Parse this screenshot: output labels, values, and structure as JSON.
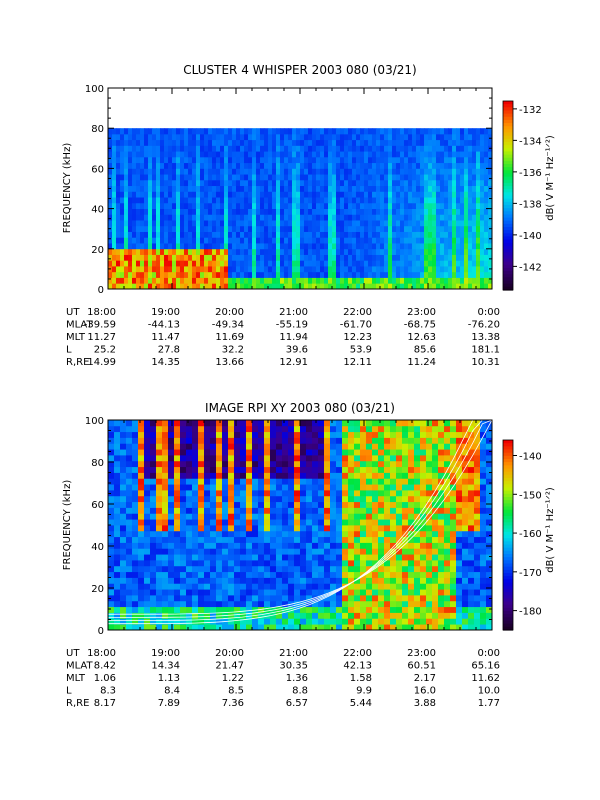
{
  "chart_data": [
    {
      "type": "heatmap",
      "title": "CLUSTER 4 WHISPER 2003 080 (03/21)",
      "ylabel": "FREQUENCY (kHz)",
      "ylim": [
        0,
        100
      ],
      "yticks": [
        "0",
        "20",
        "40",
        "60",
        "80",
        "100"
      ],
      "data_frequency_max_khz": 80,
      "colorbar": {
        "label": "dB( V M⁻¹ Hz⁻¹ᐟ²)",
        "range": [
          -143.5,
          -131.5
        ],
        "ticks": [
          "-132",
          "-134",
          "-136",
          "-138",
          "-140",
          "-142"
        ]
      },
      "x_axis": {
        "row_labels": [
          "UT",
          "MLAT",
          "MLT",
          "L",
          "R,RE"
        ],
        "ut": [
          "18:00",
          "19:00",
          "20:00",
          "21:00",
          "22:00",
          "23:00",
          "0:00"
        ],
        "mlat": [
          "-39.59",
          "-44.13",
          "-49.34",
          "-55.19",
          "-61.70",
          "-68.75",
          "-76.20"
        ],
        "mlt": [
          "11.27",
          "11.47",
          "11.69",
          "11.94",
          "12.23",
          "12.63",
          "13.38"
        ],
        "l": [
          "25.2",
          "27.8",
          "32.2",
          "39.6",
          "53.9",
          "85.6",
          "181.1"
        ],
        "r_re": [
          "14.99",
          "14.35",
          "13.66",
          "12.91",
          "12.11",
          "11.24",
          "10.31"
        ]
      }
    },
    {
      "type": "heatmap",
      "title": "IMAGE RPI XY 2003 080 (03/21)",
      "ylabel": "FREQUENCY (kHz)",
      "ylim": [
        0,
        100
      ],
      "yticks": [
        "0",
        "20",
        "40",
        "60",
        "80",
        "100"
      ],
      "colorbar": {
        "label": "dB( V M⁻¹ Hz⁻¹ᐟ²)",
        "range": [
          -185,
          -136
        ],
        "ticks": [
          "-140",
          "-150",
          "-160",
          "-170",
          "-180"
        ]
      },
      "x_axis": {
        "row_labels": [
          "UT",
          "MLAT",
          "MLT",
          "L",
          "R,RE"
        ],
        "ut": [
          "18:00",
          "19:00",
          "20:00",
          "21:00",
          "22:00",
          "23:00",
          "0:00"
        ],
        "mlat": [
          "8.42",
          "14.34",
          "21.47",
          "30.35",
          "42.13",
          "60.51",
          "65.16"
        ],
        "mlt": [
          "1.06",
          "1.13",
          "1.22",
          "1.36",
          "1.58",
          "2.17",
          "11.62"
        ],
        "l": [
          "8.3",
          "8.4",
          "8.5",
          "8.8",
          "9.9",
          "16.0",
          "10.0"
        ],
        "r_re": [
          "8.17",
          "7.89",
          "7.36",
          "6.57",
          "5.44",
          "3.88",
          "1.77"
        ]
      }
    }
  ]
}
